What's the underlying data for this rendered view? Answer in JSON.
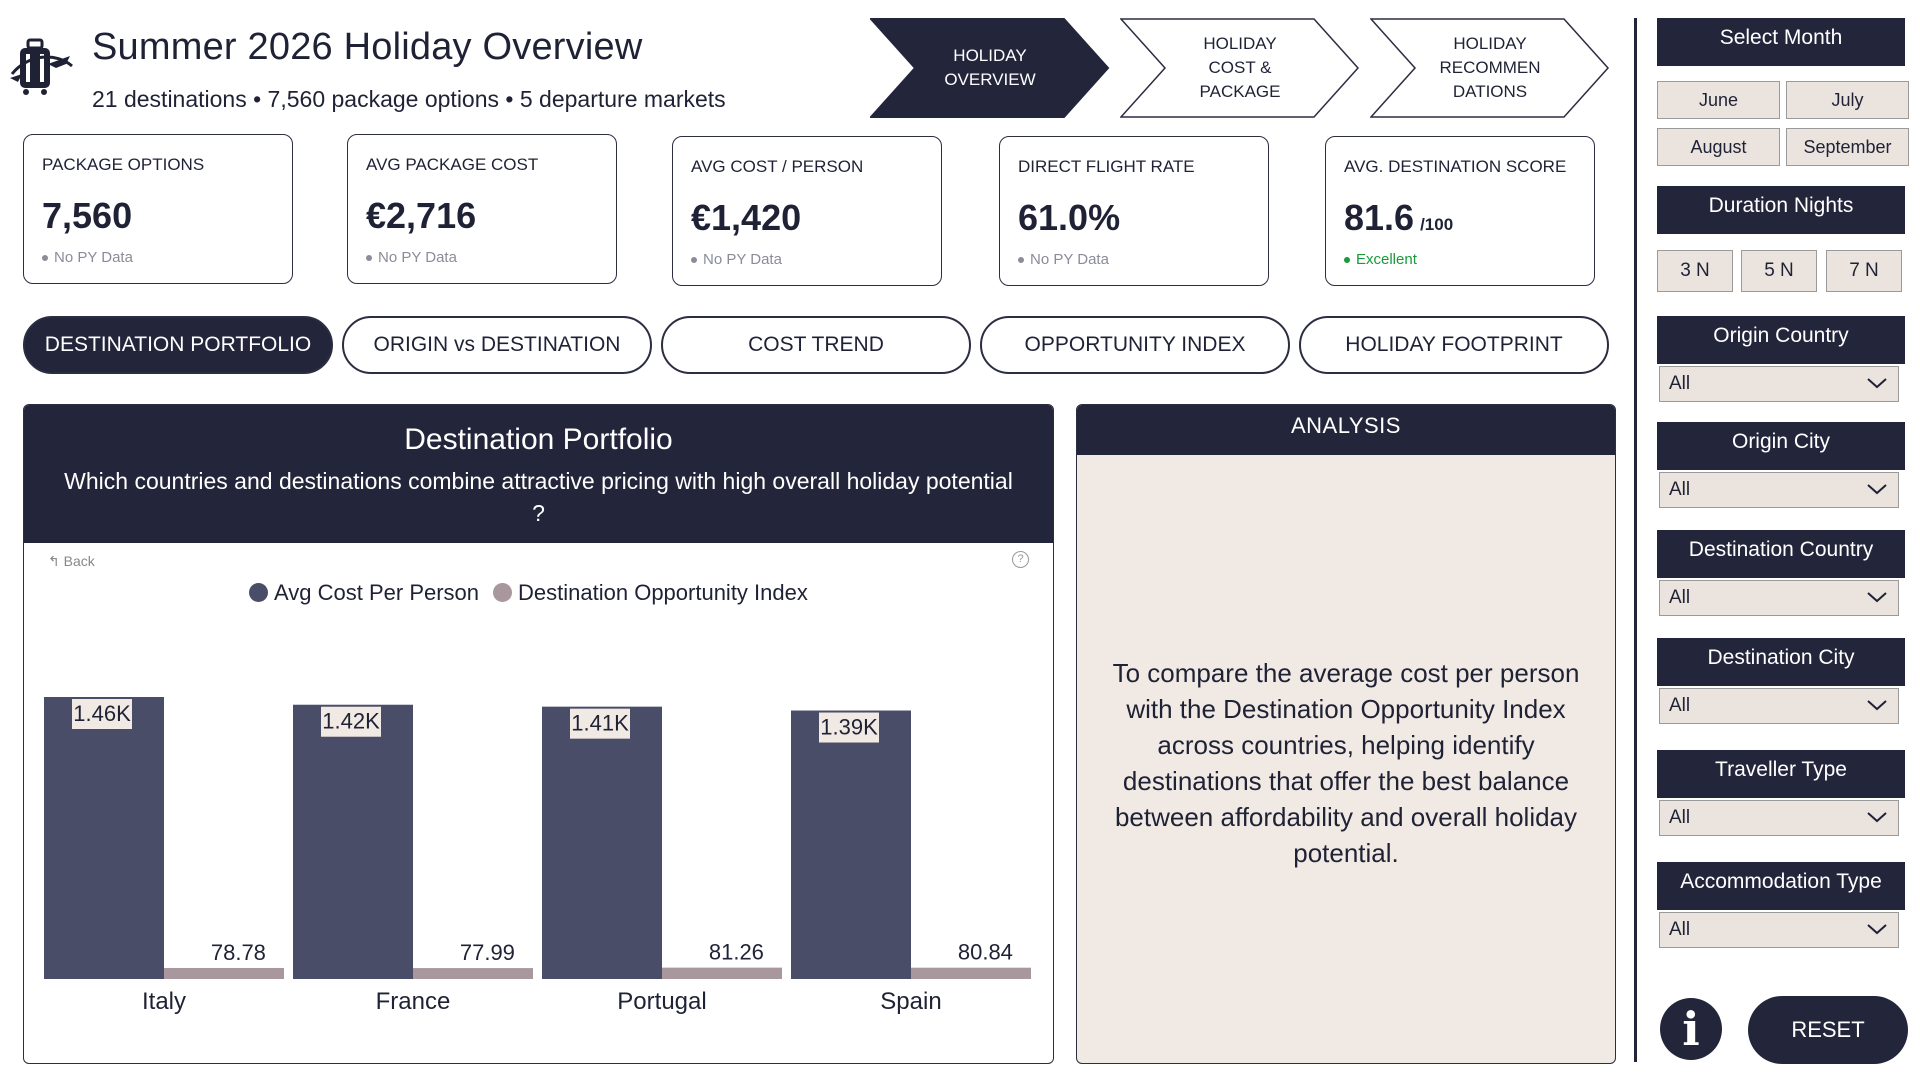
{
  "header": {
    "title": "Summer 2026 Holiday Overview",
    "subtitle": "21 destinations • 7,560 package options • 5 departure markets"
  },
  "nav": [
    {
      "label": "HOLIDAY\nOVERVIEW",
      "active": true
    },
    {
      "label": "HOLIDAY\nCOST &\nPACKAGE",
      "active": false
    },
    {
      "label": "HOLIDAY\nRECOMMEN\nDATIONS",
      "active": false
    }
  ],
  "kpis": [
    {
      "label": "PACKAGE OPTIONS",
      "value": "7,560",
      "unit": "",
      "note": "No PY Data"
    },
    {
      "label": "AVG PACKAGE COST",
      "value": "€2,716",
      "unit": "",
      "note": "No PY Data"
    },
    {
      "label": "AVG COST / PERSON",
      "value": "€1,420",
      "unit": "",
      "note": "No PY Data"
    },
    {
      "label": "DIRECT FLIGHT RATE",
      "value": "61.0%",
      "unit": "",
      "note": "No PY Data"
    },
    {
      "label": "AVG. DESTINATION SCORE",
      "value": "81.6",
      "unit": "/100",
      "note": "Excellent"
    }
  ],
  "tabs": [
    {
      "label": "DESTINATION PORTFOLIO",
      "active": true
    },
    {
      "label": "ORIGIN vs DESTINATION",
      "active": false
    },
    {
      "label": "COST TREND",
      "active": false
    },
    {
      "label": "OPPORTUNITY INDEX",
      "active": false
    },
    {
      "label": "HOLIDAY FOOTPRINT",
      "active": false
    }
  ],
  "chart_panel": {
    "title": "Destination Portfolio",
    "question": "Which countries and destinations combine attractive pricing with high overall holiday potential ?",
    "back_label": "Back",
    "help_label": "?"
  },
  "chart_data": {
    "type": "bar",
    "categories": [
      "Italy",
      "France",
      "Portugal",
      "Spain"
    ],
    "series": [
      {
        "name": "Avg Cost Per Person",
        "values": [
          1460,
          1420,
          1410,
          1390
        ],
        "labels": [
          "1.46K",
          "1.42K",
          "1.41K",
          "1.39K"
        ],
        "color": "#4a4d68"
      },
      {
        "name": "Destination Opportunity Index",
        "values": [
          78.78,
          77.99,
          81.26,
          80.84
        ],
        "labels": [
          "78.78",
          "77.99",
          "81.26",
          "80.84"
        ],
        "color": "#a8979c"
      }
    ],
    "ylim": [
      0,
      1460
    ],
    "legend": "top",
    "grid": false
  },
  "analysis": {
    "title": "ANALYSIS",
    "text": "To compare the average cost per person with the Destination Opportunity Index across countries, helping identify destinations that offer the best balance between affordability and overall holiday potential."
  },
  "filters": {
    "month_title": "Select Month",
    "months": [
      "June",
      "July",
      "August",
      "September"
    ],
    "nights_title": "Duration Nights",
    "nights": [
      "3 N",
      "5 N",
      "7 N"
    ],
    "dropdowns": [
      {
        "title": "Origin Country",
        "value": "All"
      },
      {
        "title": "Origin City",
        "value": "All"
      },
      {
        "title": "Destination Country",
        "value": "All"
      },
      {
        "title": "Destination City",
        "value": "All"
      },
      {
        "title": "Traveller Type",
        "value": "All"
      },
      {
        "title": "Accommodation Type",
        "value": "All"
      }
    ],
    "info_label": "i",
    "reset_label": "RESET"
  },
  "colors": {
    "navy": "#23253b",
    "cost_bar": "#4a4d68",
    "index_bar": "#a8979c",
    "panel_bg": "#f1e9e4",
    "good": "#1a9a3a"
  }
}
